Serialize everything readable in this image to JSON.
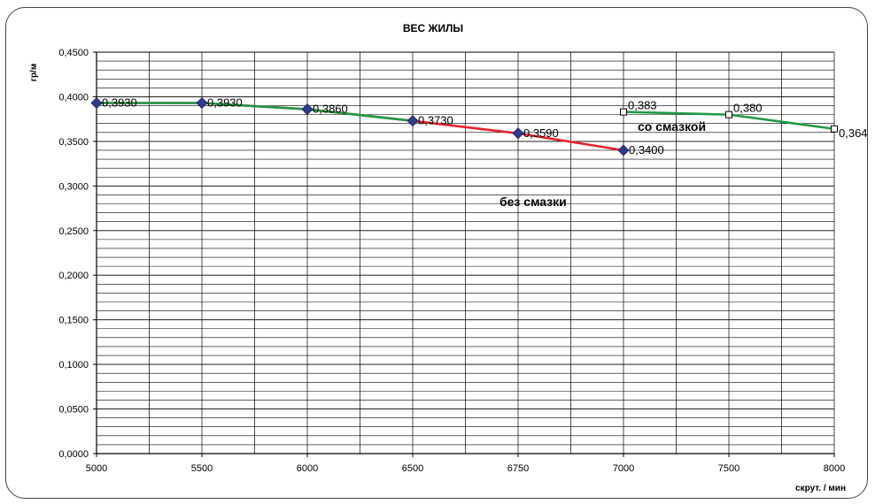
{
  "chart_data": {
    "type": "line",
    "title": "ВЕС ЖИЛЫ",
    "ylabel": "гр/м",
    "xlabel": "скрут. / мин",
    "ylim": [
      0,
      0.45
    ],
    "x_ticks": [
      "5000",
      "5500",
      "6000",
      "6500",
      "6750",
      "7000",
      "7500",
      "8000"
    ],
    "y_ticks": [
      "0,0000",
      "0,0500",
      "0,1000",
      "0,1500",
      "0,2000",
      "0,2500",
      "0,3000",
      "0,3500",
      "0,4000",
      "0,4500"
    ],
    "grid": true,
    "series": [
      {
        "key": "no_grease",
        "color": "#e8232f",
        "marker": "diamond",
        "marker_color": "#2e3a8c",
        "x_index": [
          0,
          1,
          2,
          3,
          4,
          5
        ],
        "values": [
          0.393,
          0.393,
          0.386,
          0.373,
          0.359,
          0.34
        ],
        "labels": [
          "0,3930",
          "0,3930",
          "0,3860",
          "0,3730",
          "0,3590",
          "0,3400"
        ]
      },
      {
        "key": "overlay",
        "color": "#1f9a46",
        "x_index": [
          0,
          1,
          2,
          3
        ],
        "values": [
          0.393,
          0.393,
          0.386,
          0.373
        ]
      },
      {
        "key": "with_grease",
        "color": "#1f9a46",
        "marker": "square",
        "marker_color": "#ffffff",
        "x_index": [
          5,
          6,
          7
        ],
        "values": [
          0.383,
          0.38,
          0.364
        ],
        "labels": [
          "0,383",
          "0,380",
          "0,364"
        ]
      }
    ],
    "annotations": [
      {
        "text": "со смазкой",
        "color": "#2e3a8c"
      },
      {
        "text": "без смазки",
        "color": "#2e3a8c"
      }
    ]
  }
}
